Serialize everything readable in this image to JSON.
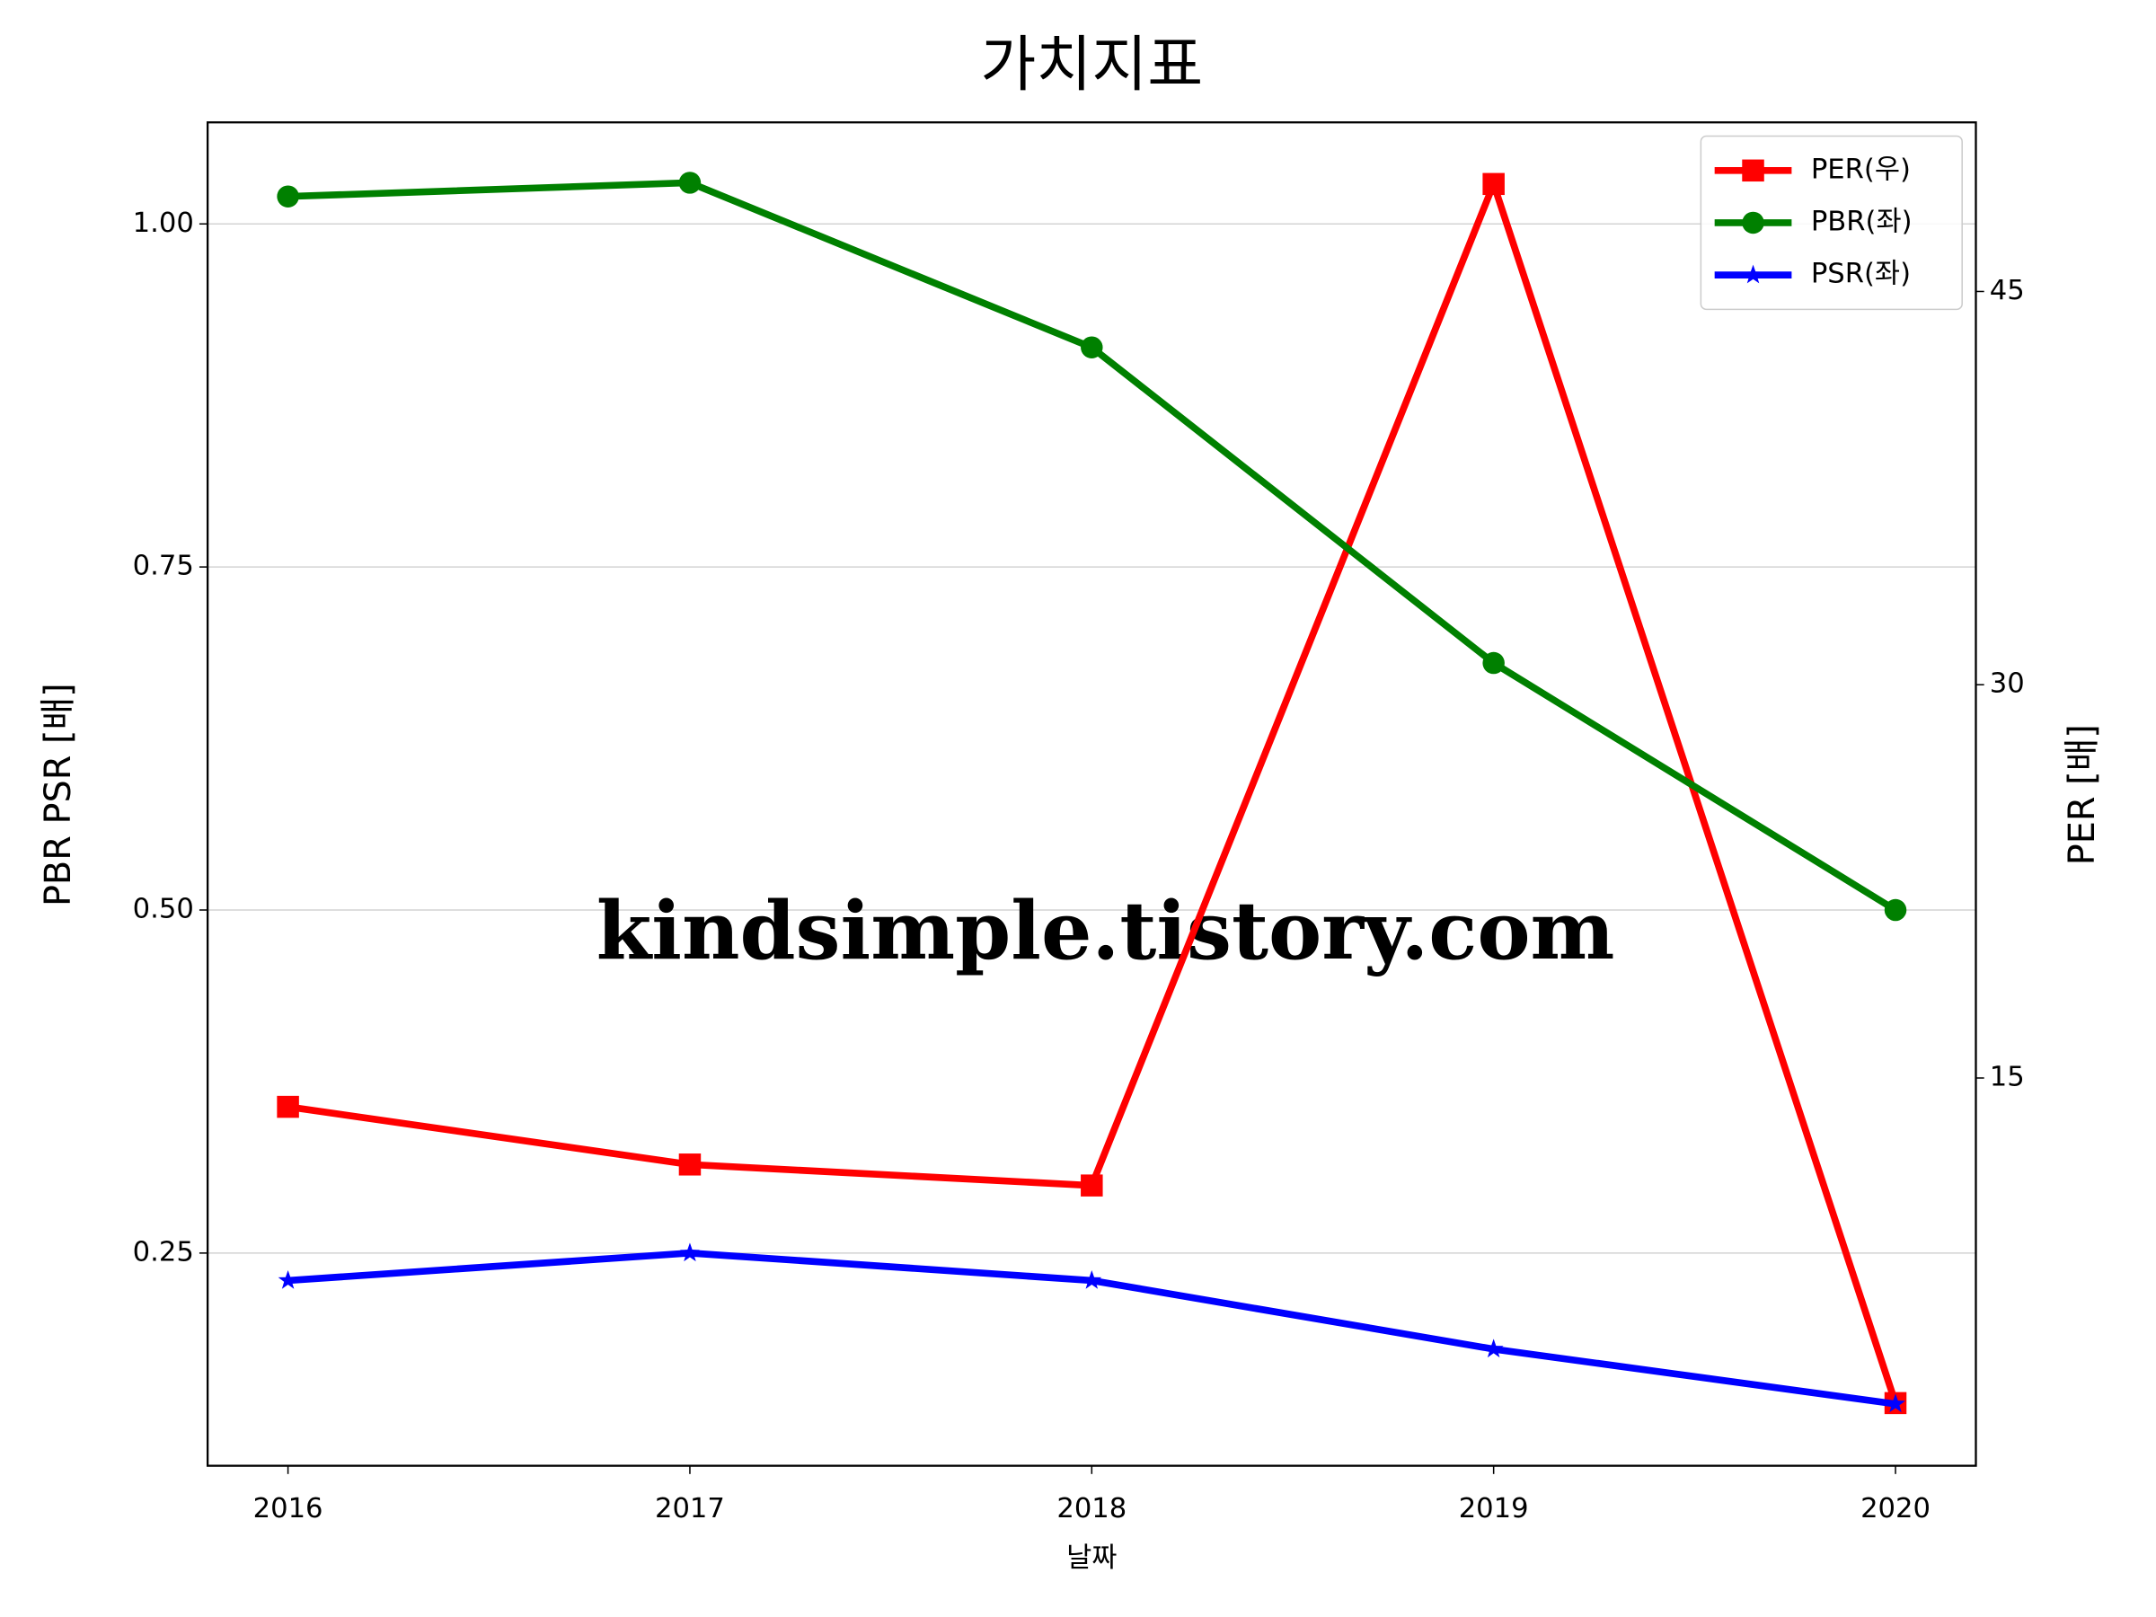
{
  "chart_data": {
    "type": "line",
    "title": "가치지표",
    "x_label": "날짜",
    "y_label": "PBR PSR [배]",
    "y2_label": "PER [배]",
    "y_label_color": "#008000",
    "y2_label_color": "#ff0000",
    "annotation": "kindsimple.tistory.com",
    "x": [
      2016,
      2017,
      2018,
      2019,
      2020
    ],
    "xlim": [
      2015.8,
      2020.2
    ],
    "xticks": [
      2016,
      2017,
      2018,
      2019,
      2020
    ],
    "ylim": [
      0.095,
      1.074
    ],
    "yticks": [
      0.25,
      {
        "value": 0.5,
        "label": "0.50"
      },
      0.75,
      {
        "value": 1.0,
        "label": "1.00"
      }
    ],
    "y2lim": [
      0.21,
      51.45
    ],
    "y2ticks": [
      15,
      30,
      45
    ],
    "grid": true,
    "legend": "upper right",
    "series": [
      {
        "name": "PER(우)",
        "color": "#ff0000",
        "marker": "square",
        "axis": "y2",
        "values": [
          13.9,
          11.7,
          10.9,
          49.1,
          2.6
        ]
      },
      {
        "name": "PBR(좌)",
        "color": "#008000",
        "marker": "circle",
        "values": [
          1.02,
          1.03,
          0.91,
          0.68,
          0.5
        ]
      },
      {
        "name": "PSR(좌)",
        "color": "#0000ff",
        "marker": "star",
        "values": [
          0.23,
          0.25,
          0.23,
          0.18,
          0.14
        ]
      }
    ]
  }
}
